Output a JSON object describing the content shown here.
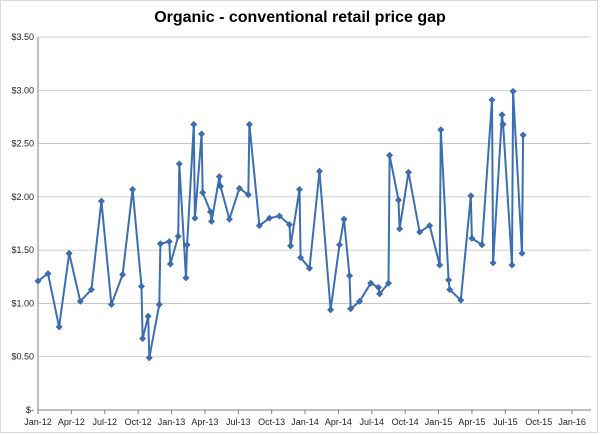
{
  "chart_data": {
    "type": "line",
    "title": "Organic - conventional  retail price gap",
    "xlabel": "",
    "ylabel": "",
    "ylim": [
      0,
      3.5
    ],
    "y_ticks": [
      0,
      0.5,
      1.0,
      1.5,
      2.0,
      2.5,
      3.0,
      3.5
    ],
    "y_tick_labels": [
      "$-",
      "$0.50",
      "$1.00",
      "$1.50",
      "$2.00",
      "$2.50",
      "$3.00",
      "$3.50"
    ],
    "x_tick_labels": [
      "Jan-12",
      "Apr-12",
      "Jul-12",
      "Oct-12",
      "Jan-13",
      "Apr-13",
      "Jul-13",
      "Oct-13",
      "Jan-14",
      "Apr-14",
      "Jul-14",
      "Oct-14",
      "Jan-15",
      "Apr-15",
      "Jul-15",
      "Oct-15",
      "Jan-16"
    ],
    "x_tick_months": [
      0,
      3,
      6,
      9,
      12,
      15,
      18,
      21,
      24,
      27,
      30,
      33,
      36,
      39,
      42,
      45,
      48
    ],
    "xlim_months": [
      0,
      49.7
    ],
    "gridlines": "horizontal",
    "legend": "none",
    "line_color": "#3c6eb4",
    "series": [
      {
        "points": [
          [
            0.0,
            1.21
          ],
          [
            0.9,
            1.28
          ],
          [
            1.9,
            0.78
          ],
          [
            2.8,
            1.47
          ],
          [
            3.8,
            1.02
          ],
          [
            4.8,
            1.13
          ],
          [
            5.7,
            1.96
          ],
          [
            6.6,
            0.99
          ],
          [
            7.6,
            1.27
          ],
          [
            8.5,
            2.07
          ],
          [
            9.3,
            1.16
          ],
          [
            9.4,
            0.67
          ],
          [
            9.9,
            0.88
          ],
          [
            10.0,
            0.49
          ],
          [
            10.9,
            0.99
          ],
          [
            11.0,
            1.56
          ],
          [
            11.8,
            1.58
          ],
          [
            11.9,
            1.37
          ],
          [
            12.6,
            1.63
          ],
          [
            12.7,
            2.31
          ],
          [
            13.3,
            1.24
          ],
          [
            13.4,
            1.55
          ],
          [
            14.0,
            2.68
          ],
          [
            14.1,
            1.8
          ],
          [
            14.7,
            2.59
          ],
          [
            14.8,
            2.04
          ],
          [
            15.5,
            1.86
          ],
          [
            15.6,
            1.77
          ],
          [
            16.3,
            2.19
          ],
          [
            16.4,
            2.1
          ],
          [
            17.2,
            1.79
          ],
          [
            18.1,
            2.08
          ],
          [
            18.9,
            2.02
          ],
          [
            19.0,
            2.68
          ],
          [
            19.9,
            1.73
          ],
          [
            20.8,
            1.8
          ],
          [
            21.7,
            1.82
          ],
          [
            22.6,
            1.74
          ],
          [
            22.7,
            1.54
          ],
          [
            23.5,
            2.07
          ],
          [
            23.6,
            1.43
          ],
          [
            24.4,
            1.33
          ],
          [
            25.3,
            2.24
          ],
          [
            26.3,
            0.94
          ],
          [
            27.1,
            1.55
          ],
          [
            27.5,
            1.79
          ],
          [
            28.0,
            1.26
          ],
          [
            28.1,
            0.95
          ],
          [
            28.9,
            1.02
          ],
          [
            29.9,
            1.19
          ],
          [
            30.6,
            1.15
          ],
          [
            30.7,
            1.09
          ],
          [
            31.5,
            1.19
          ],
          [
            31.6,
            2.39
          ],
          [
            32.4,
            1.97
          ],
          [
            32.5,
            1.7
          ],
          [
            33.3,
            2.23
          ],
          [
            34.3,
            1.67
          ],
          [
            35.2,
            1.73
          ],
          [
            36.1,
            1.36
          ],
          [
            36.2,
            2.63
          ],
          [
            36.9,
            1.22
          ],
          [
            37.0,
            1.13
          ],
          [
            38.0,
            1.03
          ],
          [
            38.9,
            2.01
          ],
          [
            39.0,
            1.61
          ],
          [
            39.9,
            1.55
          ],
          [
            40.8,
            2.91
          ],
          [
            40.9,
            1.38
          ],
          [
            41.7,
            2.77
          ],
          [
            41.8,
            2.68
          ],
          [
            42.6,
            1.36
          ],
          [
            42.7,
            2.99
          ],
          [
            43.5,
            1.47
          ],
          [
            43.6,
            2.58
          ]
        ]
      }
    ]
  }
}
